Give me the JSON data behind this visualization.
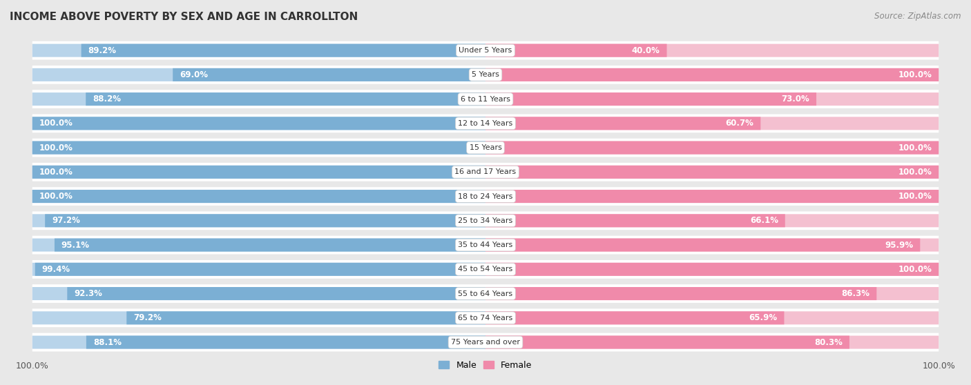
{
  "title": "INCOME ABOVE POVERTY BY SEX AND AGE IN CARROLLTON",
  "source": "Source: ZipAtlas.com",
  "categories": [
    "Under 5 Years",
    "5 Years",
    "6 to 11 Years",
    "12 to 14 Years",
    "15 Years",
    "16 and 17 Years",
    "18 to 24 Years",
    "25 to 34 Years",
    "35 to 44 Years",
    "45 to 54 Years",
    "55 to 64 Years",
    "65 to 74 Years",
    "75 Years and over"
  ],
  "male": [
    89.2,
    69.0,
    88.2,
    100.0,
    100.0,
    100.0,
    100.0,
    97.2,
    95.1,
    99.4,
    92.3,
    79.2,
    88.1
  ],
  "female": [
    40.0,
    100.0,
    73.0,
    60.7,
    100.0,
    100.0,
    100.0,
    66.1,
    95.9,
    100.0,
    86.3,
    65.9,
    80.3
  ],
  "male_color": "#7bafd4",
  "female_color": "#f08aaa",
  "male_light_color": "#b8d4ea",
  "female_light_color": "#f4c0d0",
  "male_label": "Male",
  "female_label": "Female",
  "bg_color": "#e8e8e8",
  "row_bg_color": "#ffffff",
  "title_fontsize": 11,
  "label_fontsize": 8.5,
  "tick_fontsize": 9,
  "source_fontsize": 8.5
}
